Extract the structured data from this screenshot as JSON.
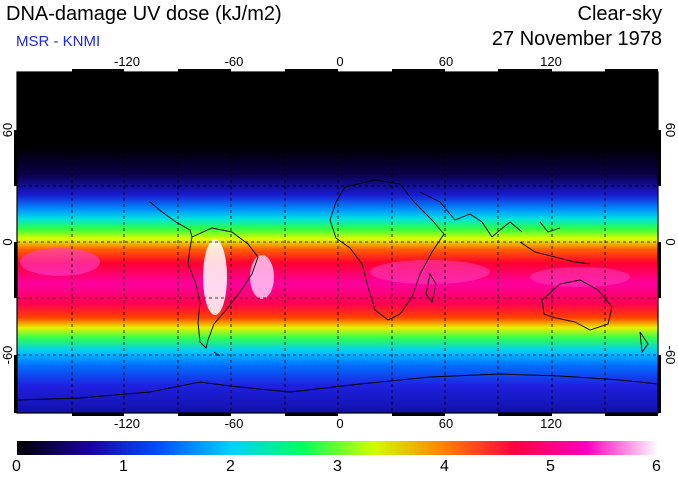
{
  "header": {
    "title": "DNA-damage UV dose (kJ/m2)",
    "subtitle": "MSR - KNMI",
    "condition": "Clear-sky",
    "date": "27 November 1978"
  },
  "map": {
    "lon_ticks": [
      "-120",
      "-60",
      "0",
      "60",
      "120"
    ],
    "lat_ticks_left": [
      "60",
      "0",
      "-60"
    ],
    "lat_ticks_right": [
      "60",
      "0",
      "-60"
    ]
  },
  "colorbar": {
    "labels": [
      "0",
      "1",
      "2",
      "3",
      "4",
      "5",
      "6"
    ],
    "range": [
      0,
      6
    ],
    "stops": [
      "#000000",
      "#1a00a0",
      "#0050ff",
      "#00d0ff",
      "#00ff60",
      "#d0ff00",
      "#ff8000",
      "#ff0040",
      "#ff00c0",
      "#ffffff"
    ]
  },
  "colors": {
    "subtitle": "#1f2bd6",
    "frame": "#000000",
    "gridline": "#000000"
  }
}
